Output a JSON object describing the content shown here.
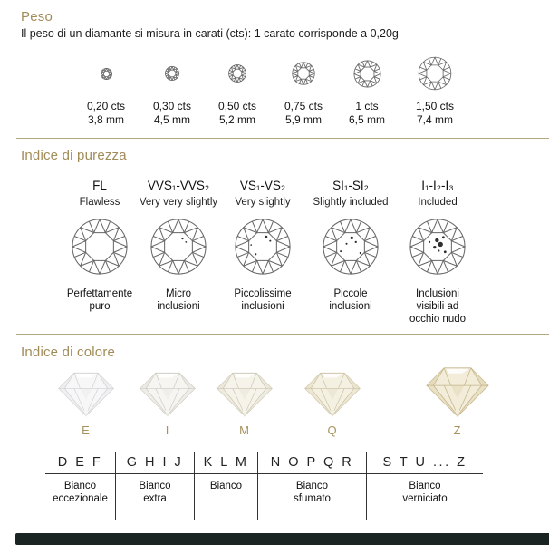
{
  "page": {
    "accent_color": "#a18b58",
    "separator_color": "#b3a77e",
    "table_line_color": "#333333",
    "footer_bar_color": "#1a2423"
  },
  "icons": {
    "diamond_top": "round-brilliant-top-view-icon",
    "diamond_side": "round-brilliant-side-view-icon"
  },
  "peso": {
    "title": "Peso",
    "subtitle": "Il peso di un diamante si misura in carati (cts): 1 carato corrisponde a 0,20g",
    "items": [
      {
        "carats": "0,20 cts",
        "size_mm": "3,8 mm"
      },
      {
        "carats": "0,30 cts",
        "size_mm": "4,5 mm"
      },
      {
        "carats": "0,50 cts",
        "size_mm": "5,2 mm"
      },
      {
        "carats": "0,75 cts",
        "size_mm": "5,9 mm"
      },
      {
        "carats": "1 cts",
        "size_mm": "6,5 mm"
      },
      {
        "carats": "1,50 cts",
        "size_mm": "7,4 mm"
      }
    ]
  },
  "purezza": {
    "title": "Indice di purezza",
    "grades": [
      {
        "code": "FL",
        "name": "Flawless",
        "description": "Perfettamente\npuro"
      },
      {
        "code": "VVS₁-VVS₂",
        "name": "Very very slightly",
        "description": "Micro\ninclusioni"
      },
      {
        "code": "VS₁-VS₂",
        "name": "Very slightly",
        "description": "Piccolissime\ninclusioni"
      },
      {
        "code": "SI₁-SI₂",
        "name": "Slightly included",
        "description": "Piccole\ninclusioni"
      },
      {
        "code": "I₁-I₂-I₃",
        "name": "Included",
        "description": "Inclusioni\nvisibili ad\nocchio nudo"
      }
    ]
  },
  "colore": {
    "title": "Indice di colore",
    "grades": [
      {
        "letter": "E",
        "tint": "#f7f7f8",
        "shade": "#e9e9eb",
        "edge": "#cfcfd2"
      },
      {
        "letter": "I",
        "tint": "#f6f5f1",
        "shade": "#e8e6de",
        "edge": "#ccc9c0"
      },
      {
        "letter": "M",
        "tint": "#f5f3ea",
        "shade": "#e7e3d4",
        "edge": "#cbc5b2"
      },
      {
        "letter": "Q",
        "tint": "#f4f0e2",
        "shade": "#e5dec6",
        "edge": "#c9c0a2"
      },
      {
        "letter": "Z",
        "tint": "#f2ecd9",
        "shade": "#e0d5b2",
        "edge": "#c3b489"
      }
    ],
    "scale": [
      {
        "letters": "D E F",
        "label": "Bianco\neccezionale"
      },
      {
        "letters": "G H I J",
        "label": "Bianco\nextra"
      },
      {
        "letters": "K L M",
        "label": "Bianco"
      },
      {
        "letters": "N O P Q R",
        "label": "Bianco\nsfumato"
      },
      {
        "letters": "S T U ... Z",
        "label": "Bianco\nverniciato"
      }
    ]
  }
}
